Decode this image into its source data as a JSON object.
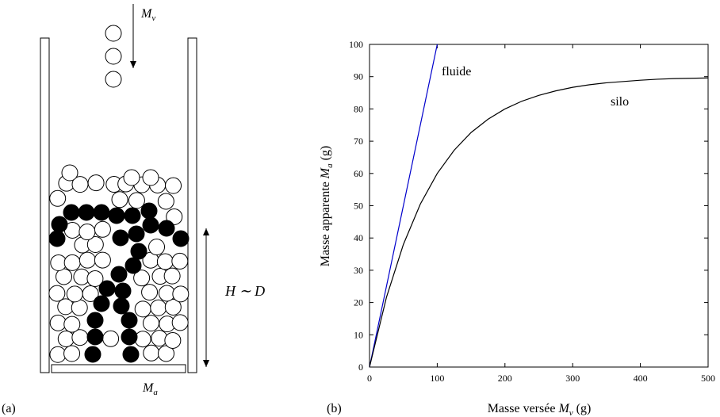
{
  "panel_a": {
    "label": "(a)",
    "flow_label": {
      "symbol": "M",
      "sub": "v"
    },
    "weight_label": {
      "symbol": "M",
      "sub": "a"
    },
    "height_label": "H ∼ D"
  },
  "chart_data": {
    "type": "line",
    "panel_label": "(b)",
    "xlabel": {
      "text": "Masse versée",
      "symbol": "M",
      "sub": "v",
      "unit": "(g)"
    },
    "ylabel": {
      "text": "Masse apparente",
      "symbol": "M",
      "sub": "a",
      "unit": "(g)"
    },
    "xlim": [
      0,
      500
    ],
    "ylim": [
      0,
      100
    ],
    "xticks": [
      0,
      100,
      200,
      300,
      400,
      500
    ],
    "yticks": [
      0,
      10,
      20,
      30,
      40,
      50,
      60,
      70,
      80,
      90,
      100
    ],
    "series": [
      {
        "name": "fluide",
        "color": "#0000cc",
        "x": [
          0,
          100
        ],
        "values": [
          0,
          100
        ]
      },
      {
        "name": "silo",
        "color": "#000000",
        "x": [
          0,
          25,
          50,
          75,
          100,
          125,
          150,
          175,
          200,
          225,
          250,
          275,
          300,
          325,
          350,
          375,
          400,
          425,
          450,
          475,
          500
        ],
        "values": [
          0,
          21.6,
          38.0,
          50.5,
          60.0,
          67.2,
          72.7,
          76.8,
          80.0,
          82.4,
          84.2,
          85.6,
          86.7,
          87.5,
          88.1,
          88.5,
          88.9,
          89.2,
          89.4,
          89.5,
          89.6
        ]
      }
    ]
  }
}
